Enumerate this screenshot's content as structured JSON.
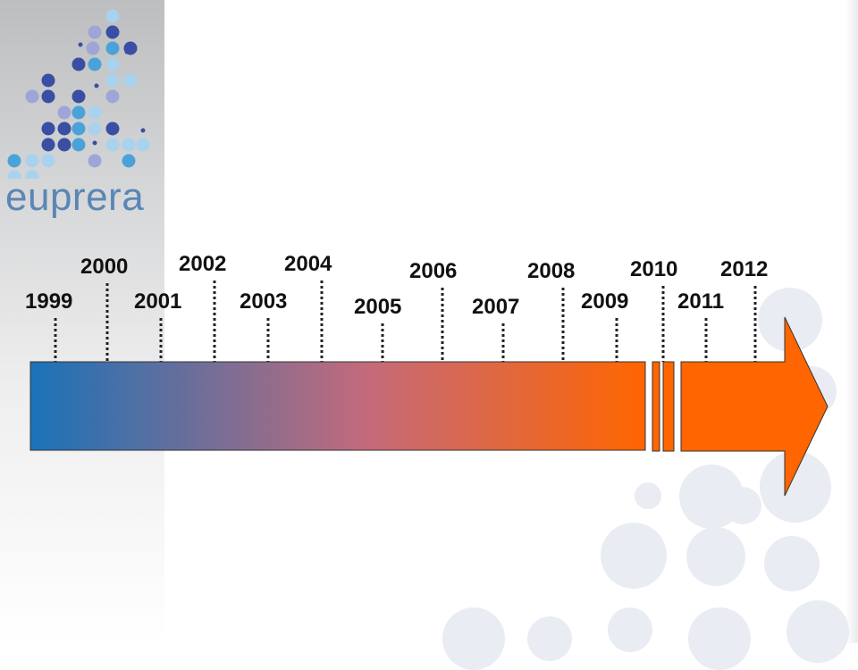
{
  "slide": {
    "logo_text": "euprera"
  },
  "timeline": {
    "years": [
      "1999",
      "2000",
      "2001",
      "2002",
      "2003",
      "2004",
      "2005",
      "2006",
      "2007",
      "2008",
      "2009",
      "2010",
      "2011",
      "2012"
    ],
    "bar_colors": {
      "start": "#1a72b8",
      "mid": "#c46a7a",
      "end": "#ff6500"
    },
    "arrow_color": "#ff6500"
  },
  "logo": {
    "dot_colors": [
      "#3a4ea3",
      "#4aa3d8",
      "#9fa5d6",
      "#a9d2ef"
    ]
  }
}
